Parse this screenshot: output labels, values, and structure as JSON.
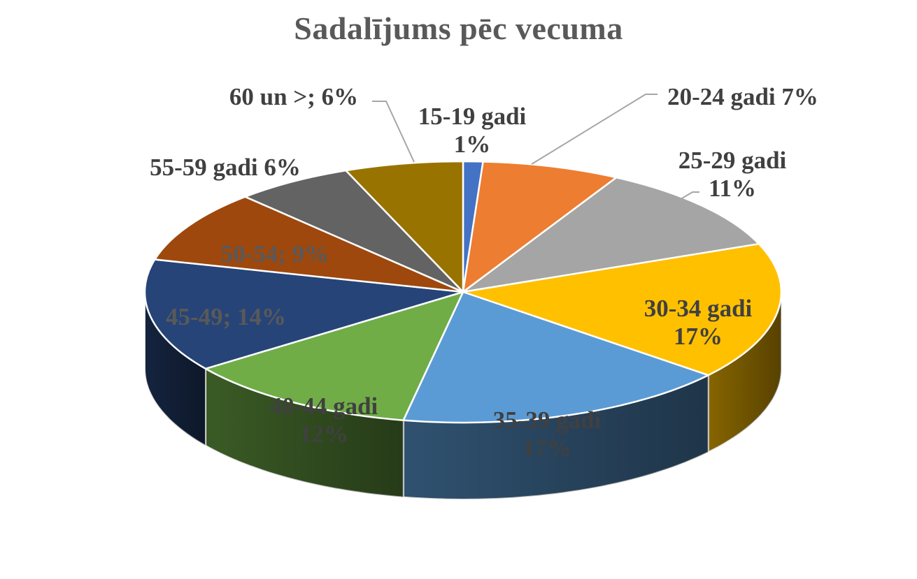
{
  "chart_data": {
    "type": "pie",
    "title": "Sadalījums pēc vecuma",
    "categories": [
      "15-19 gadi",
      "20-24 gadi",
      "25-29 gadi",
      "30-34 gadi",
      "35-39 gadi",
      "40-44 gadi",
      "45-49",
      "50-54",
      "55-59 gadi",
      "60 un >"
    ],
    "values": [
      1,
      7,
      11,
      17,
      17,
      12,
      14,
      9,
      6,
      6
    ],
    "colors": [
      "#4472C4",
      "#ED7D31",
      "#A5A5A5",
      "#FFC000",
      "#5B9BD5",
      "#70AD47",
      "#264478",
      "#9E480E",
      "#636363",
      "#997300"
    ],
    "data_labels": [
      [
        "15-19 gadi",
        "1%"
      ],
      [
        "20-24 gadi 7%"
      ],
      [
        "25-29 gadi",
        "11%"
      ],
      [
        "30-34 gadi",
        "17%"
      ],
      [
        "35-39 gadi",
        "17%"
      ],
      [
        "40-44 gadi",
        "12%"
      ],
      [
        "45-49; 14%"
      ],
      [
        "50-54; 9%"
      ],
      [
        "55-59 gadi 6%"
      ],
      [
        "60 un >; 6%"
      ]
    ],
    "style": "3d-exploded-free"
  }
}
